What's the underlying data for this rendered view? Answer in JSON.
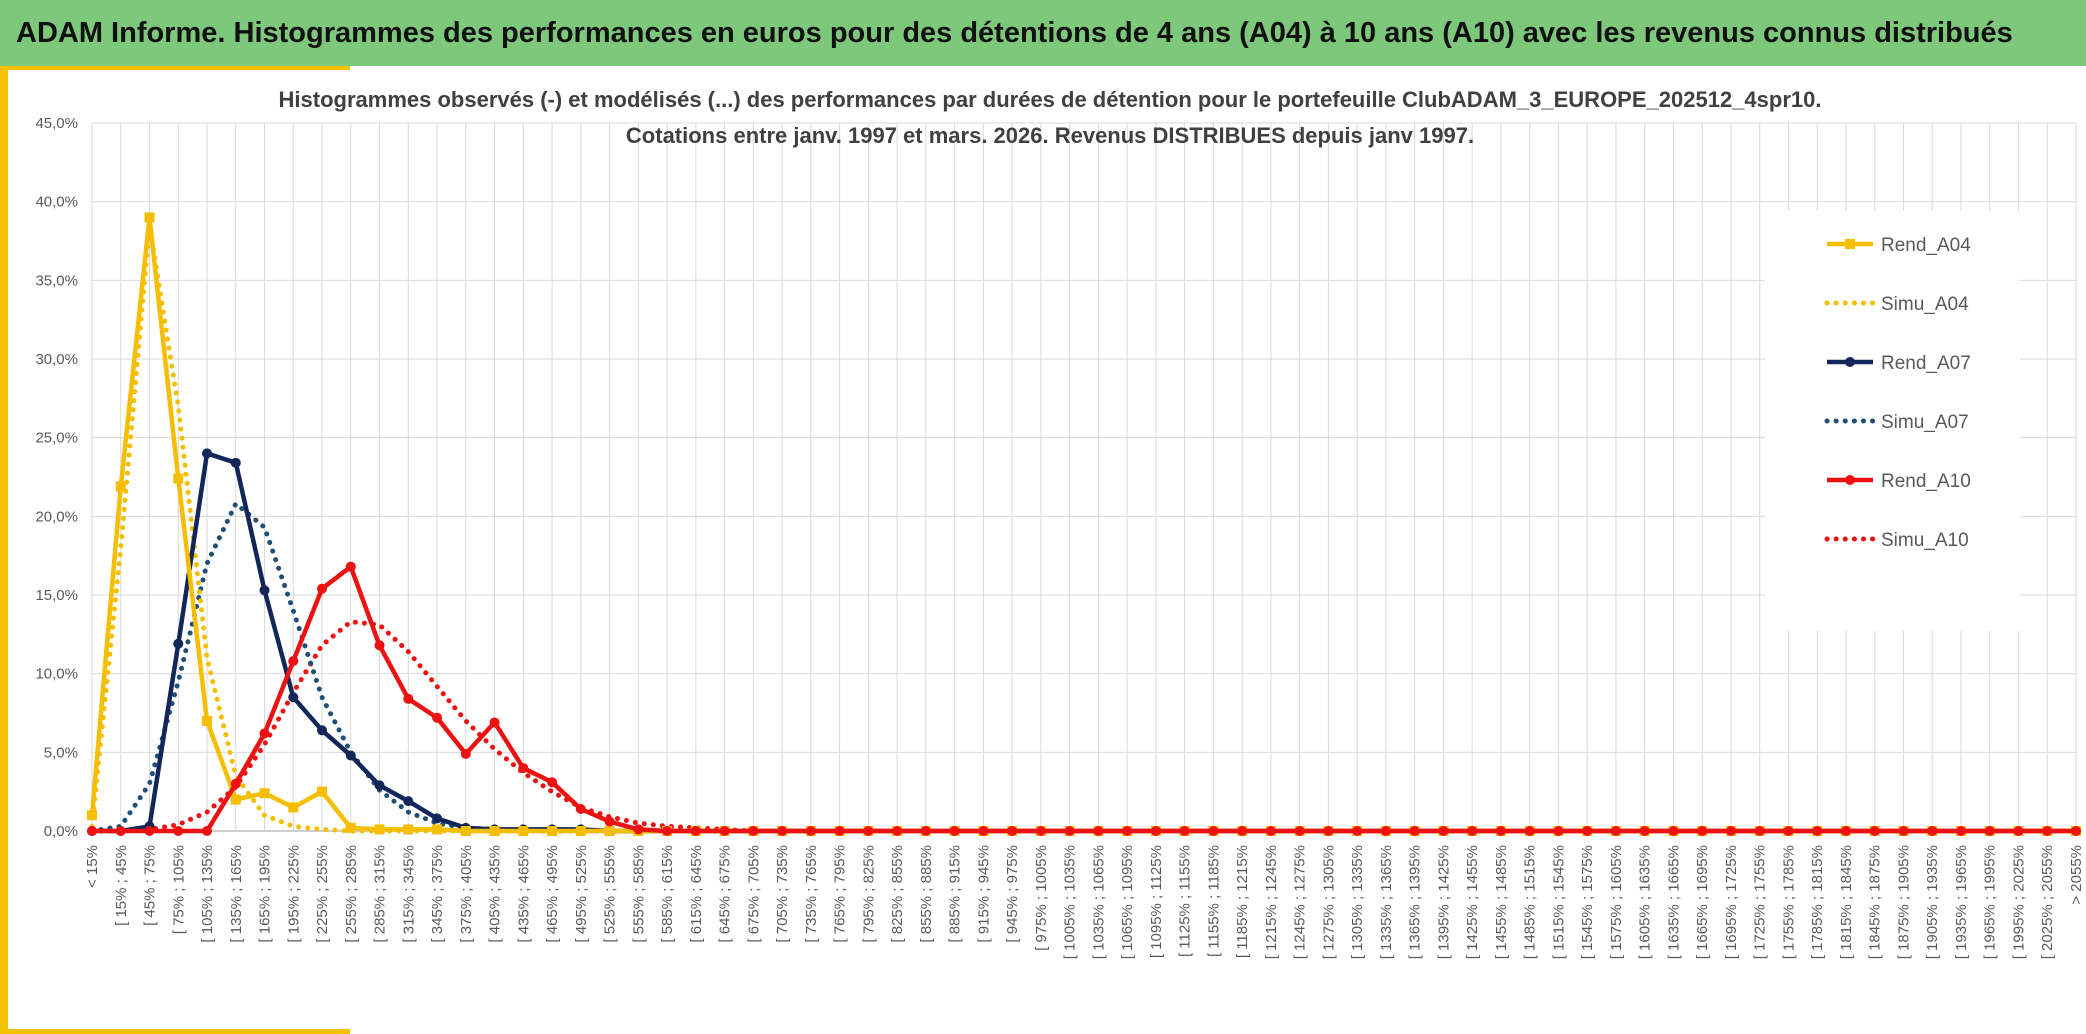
{
  "banner": {
    "title": "ADAM Informe. Histogrammes des performances en euros pour des détentions de 4 ans (A04) à 10 ans (A10) avec les revenus connus distribués"
  },
  "chart_data": {
    "type": "line",
    "title": "Histogrammes observés (-) et modélisés (...) des performances par durées de détention pour le portefeuille ClubADAM_3_EUROPE_202512_4spr10.",
    "subtitle": "Cotations entre janv. 1997 et mars. 2026. Revenus DISTRIBUES depuis janv 1997.",
    "xlabel": "",
    "ylabel": "",
    "ylim": [
      0,
      45
    ],
    "yticks": [
      "0,0%",
      "5,0%",
      "10,0%",
      "15,0%",
      "20,0%",
      "25,0%",
      "30,0%",
      "35,0%",
      "40,0%",
      "45,0%"
    ],
    "grid": true,
    "legend_position": "right",
    "categories": [
      "< 15%",
      "[ 15% ; 45%",
      "[ 45% ; 75%",
      "[ 75% ; 105%",
      "[ 105% ; 135%",
      "[ 135% ; 165%",
      "[ 165% ; 195%",
      "[ 195% ; 225%",
      "[ 225% ; 255%",
      "[ 255% ; 285%",
      "[ 285% ; 315%",
      "[ 315% ; 345%",
      "[ 345% ; 375%",
      "[ 375% ; 405%",
      "[ 405% ; 435%",
      "[ 435% ; 465%",
      "[ 465% ; 495%",
      "[ 495% ; 525%",
      "[ 525% ; 555%",
      "[ 555% ; 585%",
      "[ 585% ; 615%",
      "[ 615% ; 645%",
      "[ 645% ; 675%",
      "[ 675% ; 705%",
      "[ 705% ; 735%",
      "[ 735% ; 765%",
      "[ 765% ; 795%",
      "[ 795% ; 825%",
      "[ 825% ; 855%",
      "[ 855% ; 885%",
      "[ 885% ; 915%",
      "[ 915% ; 945%",
      "[ 945% ; 975%",
      "[ 975% ; 1005%",
      "[ 1005% ; 1035%",
      "[ 1035% ; 1065%",
      "[ 1065% ; 1095%",
      "[ 1095% ; 1125%",
      "[ 1125% ; 1155%",
      "[ 1155% ; 1185%",
      "[ 1185% ; 1215%",
      "[ 1215% ; 1245%",
      "[ 1245% ; 1275%",
      "[ 1275% ; 1305%",
      "[ 1305% ; 1335%",
      "[ 1335% ; 1365%",
      "[ 1365% ; 1395%",
      "[ 1395% ; 1425%",
      "[ 1425% ; 1455%",
      "[ 1455% ; 1485%",
      "[ 1485% ; 1515%",
      "[ 1515% ; 1545%",
      "[ 1545% ; 1575%",
      "[ 1575% ; 1605%",
      "[ 1605% ; 1635%",
      "[ 1635% ; 1665%",
      "[ 1665% ; 1695%",
      "[ 1695% ; 1725%",
      "[ 1725% ; 1755%",
      "[ 1755% ; 1785%",
      "[ 1785% ; 1815%",
      "[ 1815% ; 1845%",
      "[ 1845% ; 1875%",
      "[ 1875% ; 1905%",
      "[ 1905% ; 1935%",
      "[ 1935% ; 1965%",
      "[ 1965% ; 1995%",
      "[ 1995% ; 2025%",
      "[ 2025% ; 2055%",
      "> 2055%"
    ],
    "series": [
      {
        "name": "Rend_A04",
        "style": "solid",
        "marker": "square",
        "color": "#f5be00",
        "values": [
          1.0,
          21.9,
          39.0,
          22.4,
          7.0,
          2.0,
          2.4,
          1.5,
          2.5,
          0.2,
          0.1,
          0.1,
          0.1,
          0.0,
          0.0,
          0.0,
          0.0,
          0.0,
          0.0,
          0.0,
          0.0,
          0.0,
          0.0,
          0.0,
          0.0,
          0.0,
          0.0,
          0.0,
          0.0,
          0.0,
          0.0,
          0.0,
          0.0,
          0.0,
          0.0,
          0.0,
          0.0,
          0.0,
          0.0,
          0.0,
          0.0,
          0.0,
          0.0,
          0.0,
          0.0,
          0.0,
          0.0,
          0.0,
          0.0,
          0.0,
          0.0,
          0.0,
          0.0,
          0.0,
          0.0,
          0.0,
          0.0,
          0.0,
          0.0,
          0.0,
          0.0,
          0.0,
          0.0,
          0.0,
          0.0,
          0.0,
          0.0,
          0.0,
          0.0,
          0.0
        ]
      },
      {
        "name": "Simu_A04",
        "style": "dotted",
        "color": "#f5be00",
        "values": [
          0.3,
          18.0,
          38.5,
          27.0,
          11.0,
          3.5,
          1.0,
          0.3,
          0.1,
          0.0,
          0.0,
          0.0,
          0.0,
          0.0,
          0.0,
          0.0,
          0.0,
          0.0,
          0.0,
          0.0,
          0.0,
          0.0,
          0.0,
          0.0,
          0.0,
          0.0,
          0.0,
          0.0,
          0.0,
          0.0,
          0.0,
          0.0,
          0.0,
          0.0,
          0.0,
          0.0,
          0.0,
          0.0,
          0.0,
          0.0,
          0.0,
          0.0,
          0.0,
          0.0,
          0.0,
          0.0,
          0.0,
          0.0,
          0.0,
          0.0,
          0.0,
          0.0,
          0.0,
          0.0,
          0.0,
          0.0,
          0.0,
          0.0,
          0.0,
          0.0,
          0.0,
          0.0,
          0.0,
          0.0,
          0.0,
          0.0,
          0.0,
          0.0,
          0.0,
          0.0
        ]
      },
      {
        "name": "Rend_A07",
        "style": "solid",
        "marker": "circle",
        "color": "#12265a",
        "values": [
          0.0,
          0.0,
          0.3,
          11.9,
          24.0,
          23.4,
          15.3,
          8.5,
          6.4,
          4.8,
          2.9,
          1.9,
          0.8,
          0.2,
          0.1,
          0.1,
          0.1,
          0.1,
          0.0,
          0.0,
          0.0,
          0.0,
          0.0,
          0.0,
          0.0,
          0.0,
          0.0,
          0.0,
          0.0,
          0.0,
          0.0,
          0.0,
          0.0,
          0.0,
          0.0,
          0.0,
          0.0,
          0.0,
          0.0,
          0.0,
          0.0,
          0.0,
          0.0,
          0.0,
          0.0,
          0.0,
          0.0,
          0.0,
          0.0,
          0.0,
          0.0,
          0.0,
          0.0,
          0.0,
          0.0,
          0.0,
          0.0,
          0.0,
          0.0,
          0.0,
          0.0,
          0.0,
          0.0,
          0.0,
          0.0,
          0.0,
          0.0,
          0.0,
          0.0,
          0.0
        ]
      },
      {
        "name": "Simu_A07",
        "style": "dotted",
        "color": "#1f4e79",
        "values": [
          0.0,
          0.3,
          3.0,
          9.5,
          17.0,
          20.8,
          19.3,
          14.0,
          8.5,
          5.0,
          2.6,
          1.2,
          0.5,
          0.2,
          0.1,
          0.0,
          0.0,
          0.0,
          0.0,
          0.0,
          0.0,
          0.0,
          0.0,
          0.0,
          0.0,
          0.0,
          0.0,
          0.0,
          0.0,
          0.0,
          0.0,
          0.0,
          0.0,
          0.0,
          0.0,
          0.0,
          0.0,
          0.0,
          0.0,
          0.0,
          0.0,
          0.0,
          0.0,
          0.0,
          0.0,
          0.0,
          0.0,
          0.0,
          0.0,
          0.0,
          0.0,
          0.0,
          0.0,
          0.0,
          0.0,
          0.0,
          0.0,
          0.0,
          0.0,
          0.0,
          0.0,
          0.0,
          0.0,
          0.0,
          0.0,
          0.0,
          0.0,
          0.0,
          0.0,
          0.0
        ]
      },
      {
        "name": "Rend_A10",
        "style": "solid",
        "marker": "circle",
        "color": "#ee1111",
        "values": [
          0.0,
          0.0,
          0.0,
          0.0,
          0.0,
          3.0,
          6.2,
          10.8,
          15.4,
          16.8,
          11.8,
          8.4,
          7.2,
          4.9,
          6.9,
          4.0,
          3.1,
          1.4,
          0.6,
          0.1,
          0.0,
          0.0,
          0.0,
          0.0,
          0.0,
          0.0,
          0.0,
          0.0,
          0.0,
          0.0,
          0.0,
          0.0,
          0.0,
          0.0,
          0.0,
          0.0,
          0.0,
          0.0,
          0.0,
          0.0,
          0.0,
          0.0,
          0.0,
          0.0,
          0.0,
          0.0,
          0.0,
          0.0,
          0.0,
          0.0,
          0.0,
          0.0,
          0.0,
          0.0,
          0.0,
          0.0,
          0.0,
          0.0,
          0.0,
          0.0,
          0.0,
          0.0,
          0.0,
          0.0,
          0.0,
          0.0,
          0.0,
          0.0,
          0.0,
          0.0
        ]
      },
      {
        "name": "Simu_A10",
        "style": "dotted",
        "color": "#ee1111",
        "values": [
          0.0,
          0.0,
          0.1,
          0.4,
          1.2,
          2.8,
          5.5,
          8.8,
          11.8,
          13.3,
          13.1,
          11.4,
          9.2,
          7.0,
          5.2,
          3.7,
          2.5,
          1.5,
          0.9,
          0.5,
          0.3,
          0.2,
          0.1,
          0.0,
          0.0,
          0.0,
          0.0,
          0.0,
          0.0,
          0.0,
          0.0,
          0.0,
          0.0,
          0.0,
          0.0,
          0.0,
          0.0,
          0.0,
          0.0,
          0.0,
          0.0,
          0.0,
          0.0,
          0.0,
          0.0,
          0.0,
          0.0,
          0.0,
          0.0,
          0.0,
          0.0,
          0.0,
          0.0,
          0.0,
          0.0,
          0.0,
          0.0,
          0.0,
          0.0,
          0.0,
          0.0,
          0.0,
          0.0,
          0.0,
          0.0,
          0.0,
          0.0,
          0.0,
          0.0,
          0.0
        ]
      }
    ]
  }
}
